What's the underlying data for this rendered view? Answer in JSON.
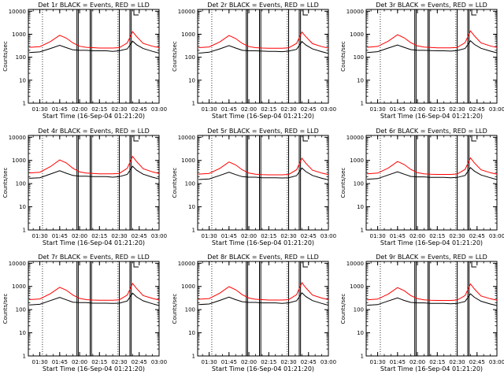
{
  "figure": {
    "xlabel": "Start Time (16-Sep-04 01:21:20)",
    "ylabel": "Counts/sec",
    "x_tick_labels": [
      "01:30",
      "01:45",
      "02:00",
      "02:15",
      "02:30",
      "02:45",
      "03:00"
    ],
    "y_tick_labels": [
      "1",
      "10",
      "100",
      "1000",
      "10000"
    ],
    "colors": {
      "events": "#000000",
      "lld": "#ff0000",
      "axes": "#000000",
      "background": "#ffffff"
    }
  },
  "chart_data": [
    {
      "type": "line",
      "title": "Det 1r BLACK = Events, RED = LLD",
      "yscale": "log",
      "ylim": [
        1,
        12000
      ],
      "xlim": [
        "01:21:20",
        "03:00:00"
      ],
      "x_tick_labels": [
        "01:30",
        "01:45",
        "02:00",
        "02:15",
        "02:30",
        "02:45",
        "03:00"
      ],
      "series": [
        {
          "name": "Events",
          "color": "#000000",
          "x": [
            "01:22",
            "01:30",
            "01:38",
            "01:45",
            "01:50",
            "01:55",
            "02:00",
            "02:05",
            "02:10",
            "02:15",
            "02:20",
            "02:25",
            "02:30",
            "02:36",
            "02:40",
            "02:43",
            "02:48",
            "02:55",
            "03:00"
          ],
          "y": [
            160,
            170,
            240,
            330,
            260,
            210,
            200,
            200,
            190,
            190,
            190,
            180,
            190,
            230,
            500,
            350,
            240,
            180,
            150
          ]
        },
        {
          "name": "LLD",
          "color": "#ff0000",
          "x": [
            "01:22",
            "01:30",
            "01:38",
            "01:45",
            "01:50",
            "01:55",
            "02:00",
            "02:05",
            "02:10",
            "02:15",
            "02:20",
            "02:25",
            "02:30",
            "02:36",
            "02:40",
            "02:43",
            "02:48",
            "02:55",
            "03:00"
          ],
          "y": [
            270,
            290,
            480,
            900,
            680,
            420,
            300,
            270,
            260,
            250,
            250,
            250,
            260,
            420,
            1300,
            800,
            400,
            300,
            260
          ]
        }
      ]
    },
    {
      "type": "line",
      "title": "Det 2r BLACK = Events, RED = LLD",
      "yscale": "log",
      "ylim": [
        1,
        12000
      ],
      "xlim": [
        "01:21:20",
        "03:00:00"
      ],
      "x_tick_labels": [
        "01:30",
        "01:45",
        "02:00",
        "02:15",
        "02:30",
        "02:45",
        "03:00"
      ],
      "series": [
        {
          "name": "Events",
          "color": "#000000",
          "x": [
            "01:22",
            "01:30",
            "01:38",
            "01:45",
            "01:50",
            "01:55",
            "02:00",
            "02:05",
            "02:10",
            "02:15",
            "02:20",
            "02:25",
            "02:30",
            "02:36",
            "02:40",
            "02:43",
            "02:48",
            "02:55",
            "03:00"
          ],
          "y": [
            150,
            165,
            230,
            320,
            250,
            200,
            190,
            190,
            185,
            180,
            180,
            175,
            185,
            220,
            480,
            340,
            230,
            175,
            145
          ]
        },
        {
          "name": "LLD",
          "color": "#ff0000",
          "x": [
            "01:22",
            "01:30",
            "01:38",
            "01:45",
            "01:50",
            "01:55",
            "02:00",
            "02:05",
            "02:10",
            "02:15",
            "02:20",
            "02:25",
            "02:30",
            "02:36",
            "02:40",
            "02:43",
            "02:48",
            "02:55",
            "03:00"
          ],
          "y": [
            260,
            280,
            460,
            880,
            650,
            400,
            290,
            260,
            250,
            245,
            245,
            245,
            255,
            400,
            1250,
            780,
            390,
            290,
            250
          ]
        }
      ]
    },
    {
      "type": "line",
      "title": "Det 3r BLACK = Events, RED = LLD",
      "yscale": "log",
      "ylim": [
        1,
        12000
      ],
      "xlim": [
        "01:21:20",
        "03:00:00"
      ],
      "x_tick_labels": [
        "01:30",
        "01:45",
        "02:00",
        "02:15",
        "02:30",
        "02:45",
        "03:00"
      ],
      "series": [
        {
          "name": "Events",
          "color": "#000000",
          "x": [
            "01:22",
            "01:30",
            "01:38",
            "01:45",
            "01:50",
            "01:55",
            "02:00",
            "02:05",
            "02:10",
            "02:15",
            "02:20",
            "02:25",
            "02:30",
            "02:36",
            "02:40",
            "02:43",
            "02:48",
            "02:55",
            "03:00"
          ],
          "y": [
            160,
            175,
            250,
            340,
            270,
            215,
            200,
            200,
            195,
            190,
            190,
            185,
            195,
            240,
            520,
            360,
            245,
            185,
            155
          ]
        },
        {
          "name": "LLD",
          "color": "#ff0000",
          "x": [
            "01:22",
            "01:30",
            "01:38",
            "01:45",
            "01:50",
            "01:55",
            "02:00",
            "02:05",
            "02:10",
            "02:15",
            "02:20",
            "02:25",
            "02:30",
            "02:36",
            "02:40",
            "02:43",
            "02:48",
            "02:55",
            "03:00"
          ],
          "y": [
            270,
            295,
            500,
            950,
            700,
            430,
            310,
            275,
            265,
            255,
            255,
            255,
            265,
            430,
            1400,
            850,
            420,
            310,
            265
          ]
        }
      ]
    },
    {
      "type": "line",
      "title": "Det 4r BLACK = Events, RED = LLD",
      "yscale": "log",
      "ylim": [
        1,
        12000
      ],
      "xlim": [
        "01:21:20",
        "03:00:00"
      ],
      "x_tick_labels": [
        "01:30",
        "01:45",
        "02:00",
        "02:15",
        "02:30",
        "02:45",
        "03:00"
      ],
      "series": [
        {
          "name": "Events",
          "color": "#000000",
          "x": [
            "01:22",
            "01:30",
            "01:38",
            "01:45",
            "01:50",
            "01:55",
            "02:00",
            "02:05",
            "02:10",
            "02:15",
            "02:20",
            "02:25",
            "02:30",
            "02:36",
            "02:40",
            "02:43",
            "02:48",
            "02:55",
            "03:00"
          ],
          "y": [
            170,
            180,
            260,
            360,
            280,
            225,
            210,
            210,
            200,
            200,
            200,
            190,
            200,
            250,
            560,
            380,
            255,
            190,
            160
          ]
        },
        {
          "name": "LLD",
          "color": "#ff0000",
          "x": [
            "01:22",
            "01:30",
            "01:38",
            "01:45",
            "01:50",
            "01:55",
            "02:00",
            "02:05",
            "02:10",
            "02:15",
            "02:20",
            "02:25",
            "02:30",
            "02:36",
            "02:40",
            "02:43",
            "02:48",
            "02:55",
            "03:00"
          ],
          "y": [
            290,
            310,
            540,
            1050,
            780,
            460,
            320,
            285,
            275,
            265,
            265,
            265,
            275,
            460,
            1500,
            900,
            440,
            320,
            275
          ]
        }
      ]
    },
    {
      "type": "line",
      "title": "Det 5r BLACK = Events, RED = LLD",
      "yscale": "log",
      "ylim": [
        1,
        12000
      ],
      "xlim": [
        "01:21:20",
        "03:00:00"
      ],
      "x_tick_labels": [
        "01:30",
        "01:45",
        "02:00",
        "02:15",
        "02:30",
        "02:45",
        "03:00"
      ],
      "series": [
        {
          "name": "Events",
          "color": "#000000",
          "x": [
            "01:22",
            "01:30",
            "01:38",
            "01:45",
            "01:50",
            "01:55",
            "02:00",
            "02:05",
            "02:10",
            "02:15",
            "02:20",
            "02:25",
            "02:30",
            "02:36",
            "02:40",
            "02:43",
            "02:48",
            "02:55",
            "03:00"
          ],
          "y": [
            150,
            160,
            225,
            310,
            245,
            200,
            190,
            190,
            180,
            180,
            180,
            175,
            180,
            220,
            470,
            330,
            225,
            170,
            145
          ]
        },
        {
          "name": "LLD",
          "color": "#ff0000",
          "x": [
            "01:22",
            "01:30",
            "01:38",
            "01:45",
            "01:50",
            "01:55",
            "02:00",
            "02:05",
            "02:10",
            "02:15",
            "02:20",
            "02:25",
            "02:30",
            "02:36",
            "02:40",
            "02:43",
            "02:48",
            "02:55",
            "03:00"
          ],
          "y": [
            255,
            275,
            450,
            860,
            640,
            395,
            285,
            255,
            245,
            240,
            240,
            240,
            250,
            395,
            1250,
            760,
            380,
            285,
            245
          ]
        }
      ]
    },
    {
      "type": "line",
      "title": "Det 6r BLACK = Events, RED = LLD",
      "yscale": "log",
      "ylim": [
        1,
        12000
      ],
      "xlim": [
        "01:21:20",
        "03:00:00"
      ],
      "x_tick_labels": [
        "01:30",
        "01:45",
        "02:00",
        "02:15",
        "02:30",
        "02:45",
        "03:00"
      ],
      "series": [
        {
          "name": "Events",
          "color": "#000000",
          "x": [
            "01:22",
            "01:30",
            "01:38",
            "01:45",
            "01:50",
            "01:55",
            "02:00",
            "02:05",
            "02:10",
            "02:15",
            "02:20",
            "02:25",
            "02:30",
            "02:36",
            "02:40",
            "02:43",
            "02:48",
            "02:55",
            "03:00"
          ],
          "y": [
            155,
            165,
            235,
            325,
            255,
            205,
            195,
            195,
            185,
            185,
            185,
            180,
            185,
            225,
            490,
            345,
            235,
            180,
            150
          ]
        },
        {
          "name": "LLD",
          "color": "#ff0000",
          "x": [
            "01:22",
            "01:30",
            "01:38",
            "01:45",
            "01:50",
            "01:55",
            "02:00",
            "02:05",
            "02:10",
            "02:15",
            "02:20",
            "02:25",
            "02:30",
            "02:36",
            "02:40",
            "02:43",
            "02:48",
            "02:55",
            "03:00"
          ],
          "y": [
            265,
            285,
            470,
            900,
            670,
            410,
            295,
            265,
            255,
            250,
            250,
            250,
            260,
            410,
            1300,
            790,
            395,
            295,
            255
          ]
        }
      ]
    },
    {
      "type": "line",
      "title": "Det 7r BLACK = Events, RED = LLD",
      "yscale": "log",
      "ylim": [
        1,
        12000
      ],
      "xlim": [
        "01:21:20",
        "03:00:00"
      ],
      "x_tick_labels": [
        "01:30",
        "01:45",
        "02:00",
        "02:15",
        "02:30",
        "02:45",
        "03:00"
      ],
      "series": [
        {
          "name": "Events",
          "color": "#000000",
          "x": [
            "01:22",
            "01:30",
            "01:38",
            "01:45",
            "01:50",
            "01:55",
            "02:00",
            "02:05",
            "02:10",
            "02:15",
            "02:20",
            "02:25",
            "02:30",
            "02:36",
            "02:40",
            "02:43",
            "02:48",
            "02:55",
            "03:00"
          ],
          "y": [
            160,
            170,
            245,
            335,
            265,
            210,
            200,
            200,
            190,
            190,
            190,
            185,
            190,
            235,
            510,
            355,
            240,
            180,
            150
          ]
        },
        {
          "name": "LLD",
          "color": "#ff0000",
          "x": [
            "01:22",
            "01:30",
            "01:38",
            "01:45",
            "01:50",
            "01:55",
            "02:00",
            "02:05",
            "02:10",
            "02:15",
            "02:20",
            "02:25",
            "02:30",
            "02:36",
            "02:40",
            "02:43",
            "02:48",
            "02:55",
            "03:00"
          ],
          "y": [
            270,
            290,
            490,
            920,
            690,
            425,
            305,
            270,
            260,
            255,
            255,
            255,
            265,
            425,
            1350,
            820,
            405,
            305,
            260
          ]
        }
      ]
    },
    {
      "type": "line",
      "title": "Det 8r BLACK = Events, RED = LLD",
      "yscale": "log",
      "ylim": [
        1,
        12000
      ],
      "xlim": [
        "01:21:20",
        "03:00:00"
      ],
      "x_tick_labels": [
        "01:30",
        "01:45",
        "02:00",
        "02:15",
        "02:30",
        "02:45",
        "03:00"
      ],
      "series": [
        {
          "name": "Events",
          "color": "#000000",
          "x": [
            "01:22",
            "01:30",
            "01:38",
            "01:45",
            "01:50",
            "01:55",
            "02:00",
            "02:05",
            "02:10",
            "02:15",
            "02:20",
            "02:25",
            "02:30",
            "02:36",
            "02:40",
            "02:43",
            "02:48",
            "02:55",
            "03:00"
          ],
          "y": [
            165,
            175,
            250,
            345,
            270,
            220,
            205,
            205,
            195,
            195,
            195,
            185,
            195,
            240,
            530,
            365,
            245,
            185,
            155
          ]
        },
        {
          "name": "LLD",
          "color": "#ff0000",
          "x": [
            "01:22",
            "01:30",
            "01:38",
            "01:45",
            "01:50",
            "01:55",
            "02:00",
            "02:05",
            "02:10",
            "02:15",
            "02:20",
            "02:25",
            "02:30",
            "02:36",
            "02:40",
            "02:43",
            "02:48",
            "02:55",
            "03:00"
          ],
          "y": [
            280,
            300,
            510,
            980,
            720,
            440,
            315,
            280,
            270,
            260,
            260,
            260,
            270,
            440,
            1450,
            870,
            425,
            315,
            270
          ]
        }
      ]
    },
    {
      "type": "line",
      "title": "Det 9r BLACK = Events, RED = LLD",
      "yscale": "log",
      "ylim": [
        1,
        12000
      ],
      "xlim": [
        "01:21:20",
        "03:00:00"
      ],
      "x_tick_labels": [
        "01:30",
        "01:45",
        "02:00",
        "02:15",
        "02:30",
        "02:45",
        "03:00"
      ],
      "series": [
        {
          "name": "Events",
          "color": "#000000",
          "x": [
            "01:22",
            "01:30",
            "01:38",
            "01:45",
            "01:50",
            "01:55",
            "02:00",
            "02:05",
            "02:10",
            "02:15",
            "02:20",
            "02:25",
            "02:30",
            "02:36",
            "02:40",
            "02:43",
            "02:48",
            "02:55",
            "03:00"
          ],
          "y": [
            155,
            165,
            235,
            320,
            250,
            205,
            195,
            195,
            185,
            185,
            185,
            180,
            185,
            225,
            480,
            340,
            230,
            175,
            150
          ]
        },
        {
          "name": "LLD",
          "color": "#ff0000",
          "x": [
            "01:22",
            "01:30",
            "01:38",
            "01:45",
            "01:50",
            "01:55",
            "02:00",
            "02:05",
            "02:10",
            "02:15",
            "02:20",
            "02:25",
            "02:30",
            "02:36",
            "02:40",
            "02:43",
            "02:48",
            "02:55",
            "03:00"
          ],
          "y": [
            265,
            285,
            470,
            890,
            660,
            405,
            295,
            265,
            255,
            250,
            250,
            250,
            260,
            405,
            1280,
            780,
            390,
            295,
            255
          ]
        }
      ]
    }
  ]
}
